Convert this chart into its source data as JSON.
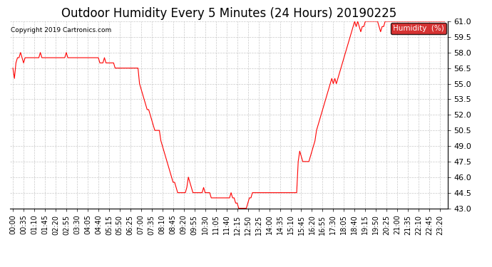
{
  "title": "Outdoor Humidity Every 5 Minutes (24 Hours) 20190225",
  "copyright": "Copyright 2019 Cartronics.com",
  "ylim": [
    43.0,
    61.0
  ],
  "yticks": [
    43.0,
    44.5,
    46.0,
    47.5,
    49.0,
    50.5,
    52.0,
    53.5,
    55.0,
    56.5,
    58.0,
    59.5,
    61.0
  ],
  "line_color": "red",
  "background_color": "#ffffff",
  "grid_color": "#bbbbbb",
  "legend_label": "Humidity  (%)",
  "legend_bg": "#cc0000",
  "legend_text_color": "white",
  "title_fontsize": 12,
  "tick_fontsize": 7,
  "humidity_data": [
    56.5,
    55.5,
    57.0,
    57.5,
    57.5,
    58.0,
    57.5,
    57.0,
    57.5,
    57.5,
    57.5,
    57.5,
    57.5,
    57.5,
    57.5,
    57.5,
    57.5,
    57.5,
    58.0,
    57.5,
    57.5,
    57.5,
    57.5,
    57.5,
    57.5,
    57.5,
    57.5,
    57.5,
    57.5,
    57.5,
    57.5,
    57.5,
    57.5,
    57.5,
    57.5,
    58.0,
    57.5,
    57.5,
    57.5,
    57.5,
    57.5,
    57.5,
    57.5,
    57.5,
    57.5,
    57.5,
    57.5,
    57.5,
    57.5,
    57.5,
    57.5,
    57.5,
    57.5,
    57.5,
    57.5,
    57.5,
    57.5,
    57.0,
    57.0,
    57.0,
    57.5,
    57.0,
    57.0,
    57.0,
    57.0,
    57.0,
    57.0,
    56.5,
    56.5,
    56.5,
    56.5,
    56.5,
    56.5,
    56.5,
    56.5,
    56.5,
    56.5,
    56.5,
    56.5,
    56.5,
    56.5,
    56.5,
    56.5,
    55.0,
    54.5,
    54.0,
    53.5,
    53.0,
    52.5,
    52.5,
    52.0,
    51.5,
    51.0,
    50.5,
    50.5,
    50.5,
    50.5,
    49.5,
    49.0,
    48.5,
    48.0,
    47.5,
    47.0,
    46.5,
    46.0,
    45.5,
    45.5,
    45.0,
    44.5,
    44.5,
    44.5,
    44.5,
    44.5,
    44.5,
    45.0,
    46.0,
    45.5,
    45.0,
    44.5,
    44.5,
    44.5,
    44.5,
    44.5,
    44.5,
    44.5,
    45.0,
    44.5,
    44.5,
    44.5,
    44.5,
    44.0,
    44.0,
    44.0,
    44.0,
    44.0,
    44.0,
    44.0,
    44.0,
    44.0,
    44.0,
    44.0,
    44.0,
    44.0,
    44.5,
    44.0,
    44.0,
    43.5,
    43.5,
    43.0,
    43.0,
    43.0,
    43.0,
    43.0,
    43.0,
    43.5,
    44.0,
    44.0,
    44.5,
    44.5,
    44.5,
    44.5,
    44.5,
    44.5,
    44.5,
    44.5,
    44.5,
    44.5,
    44.5,
    44.5,
    44.5,
    44.5,
    44.5,
    44.5,
    44.5,
    44.5,
    44.5,
    44.5,
    44.5,
    44.5,
    44.5,
    44.5,
    44.5,
    44.5,
    44.5,
    44.5,
    44.5,
    44.5,
    47.5,
    48.5,
    48.0,
    47.5,
    47.5,
    47.5,
    47.5,
    47.5,
    48.0,
    48.5,
    49.0,
    49.5,
    50.5,
    51.0,
    51.5,
    52.0,
    52.5,
    53.0,
    53.5,
    54.0,
    54.5,
    55.0,
    55.5,
    55.0,
    55.5,
    55.0,
    55.5,
    56.0,
    56.5,
    57.0,
    57.5,
    58.0,
    58.5,
    59.0,
    59.5,
    60.0,
    60.5,
    61.0,
    60.5,
    61.0,
    60.5,
    60.0,
    60.5,
    60.5,
    61.0,
    61.0,
    61.0,
    61.0,
    61.0,
    61.0,
    61.0,
    61.0,
    61.0,
    60.5,
    60.0,
    60.5,
    60.5,
    61.0,
    61.0,
    61.0,
    61.0,
    61.0,
    61.0,
    61.0,
    61.0,
    61.0,
    61.0,
    61.0,
    61.0,
    61.0,
    61.0,
    61.0,
    61.0,
    61.0,
    61.0,
    61.0,
    61.0,
    61.0,
    61.0,
    61.0,
    61.0,
    61.0,
    61.0,
    61.0,
    61.0,
    61.0,
    61.0,
    61.0,
    61.0,
    61.0,
    61.0,
    61.0,
    61.0,
    61.0,
    61.0,
    61.0,
    61.0
  ]
}
